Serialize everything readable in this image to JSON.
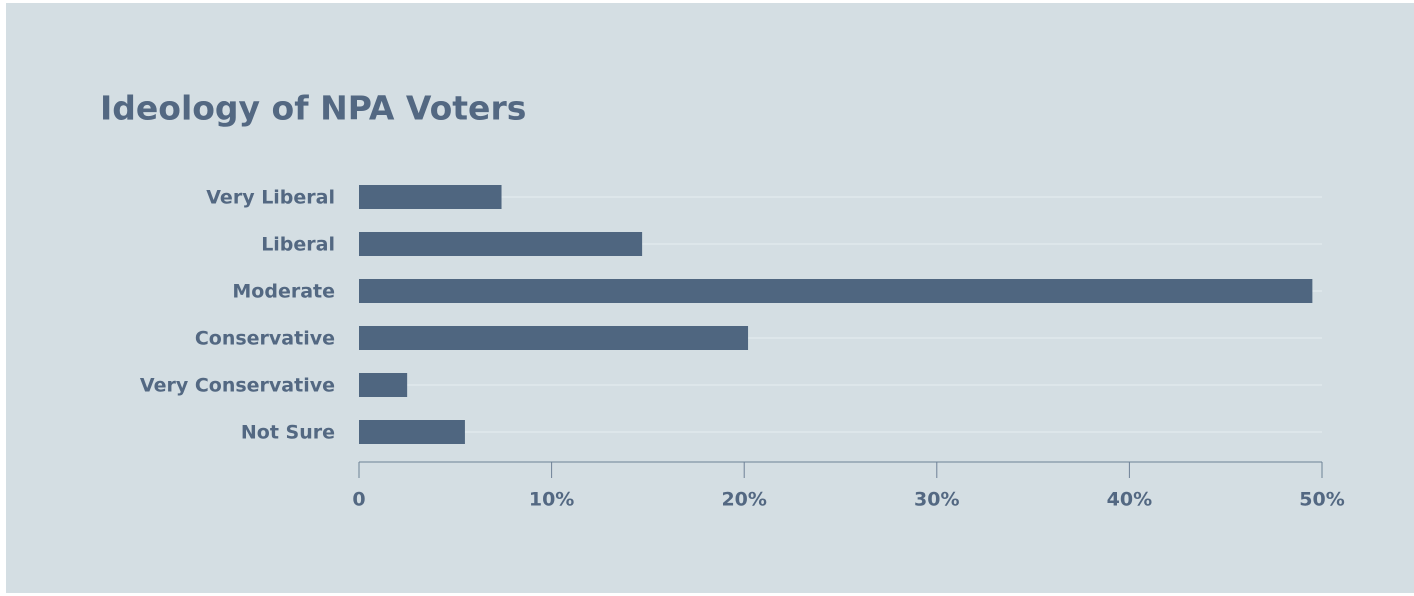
{
  "chart_data": {
    "type": "bar",
    "orientation": "horizontal",
    "title": "Ideology of NPA Voters",
    "categories": [
      "Very Liberal",
      "Liberal",
      "Moderate",
      "Conservative",
      "Very Conservative",
      "Not Sure"
    ],
    "values": [
      7.4,
      14.7,
      49.5,
      20.2,
      2.5,
      5.5
    ],
    "color": "#4f6680",
    "xlim": [
      0,
      50
    ],
    "xticks": [
      0,
      {
        "value": 10,
        "label": "10%"
      },
      {
        "value": 20,
        "label": "20%"
      },
      {
        "value": 30,
        "label": "30%"
      },
      {
        "value": 40,
        "label": "40%"
      },
      {
        "value": 50,
        "label": "50%"
      }
    ],
    "grid": true
  }
}
